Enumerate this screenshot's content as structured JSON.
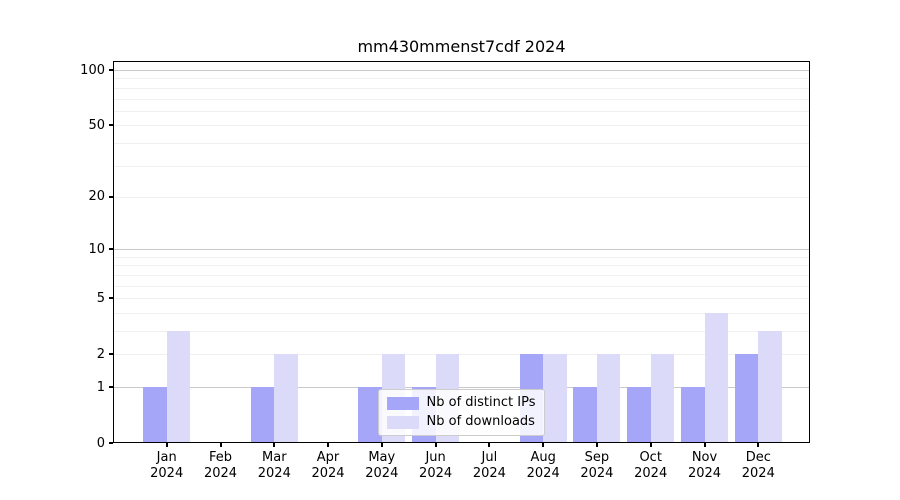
{
  "chart": {
    "title": "mm430mmenst7cdf 2024"
  },
  "chart_data": {
    "type": "bar",
    "title": "mm430mmenst7cdf 2024",
    "categories": [
      "Jan 2024",
      "Feb 2024",
      "Mar 2024",
      "Apr 2024",
      "May 2024",
      "Jun 2024",
      "Jul 2024",
      "Aug 2024",
      "Sep 2024",
      "Oct 2024",
      "Nov 2024",
      "Dec 2024"
    ],
    "x_tick_labels": [
      {
        "month": "Jan",
        "year": "2024"
      },
      {
        "month": "Feb",
        "year": "2024"
      },
      {
        "month": "Mar",
        "year": "2024"
      },
      {
        "month": "Apr",
        "year": "2024"
      },
      {
        "month": "May",
        "year": "2024"
      },
      {
        "month": "Jun",
        "year": "2024"
      },
      {
        "month": "Jul",
        "year": "2024"
      },
      {
        "month": "Aug",
        "year": "2024"
      },
      {
        "month": "Sep",
        "year": "2024"
      },
      {
        "month": "Oct",
        "year": "2024"
      },
      {
        "month": "Nov",
        "year": "2024"
      },
      {
        "month": "Dec",
        "year": "2024"
      }
    ],
    "series": [
      {
        "name": "Nb of distinct IPs",
        "color": "#a6a6f8",
        "values": [
          1,
          0,
          1,
          0,
          1,
          1,
          0,
          2,
          1,
          1,
          1,
          2
        ]
      },
      {
        "name": "Nb of downloads",
        "color": "#dbdbf9",
        "values": [
          3,
          0,
          2,
          0,
          2,
          2,
          0,
          2,
          2,
          2,
          4,
          3
        ]
      }
    ],
    "xlabel": "",
    "ylabel": "",
    "yscale": "log1p",
    "ylim": [
      0,
      112
    ],
    "yticks": [
      0,
      1,
      2,
      5,
      10,
      20,
      50,
      100
    ],
    "major_gridlines": [
      1,
      10,
      100
    ],
    "minor_gridlines": [
      2,
      3,
      4,
      5,
      6,
      7,
      8,
      9,
      20,
      30,
      40,
      50,
      60,
      70,
      80,
      90
    ],
    "grid": true,
    "legend_position": "lower center",
    "colors": {
      "distinct_ips_bar": "#a6a6f8",
      "downloads_bar": "#dbdbf9",
      "major_grid": "#c9c9c9",
      "minor_grid": "#f0f0f0",
      "spine": "#000000"
    }
  }
}
